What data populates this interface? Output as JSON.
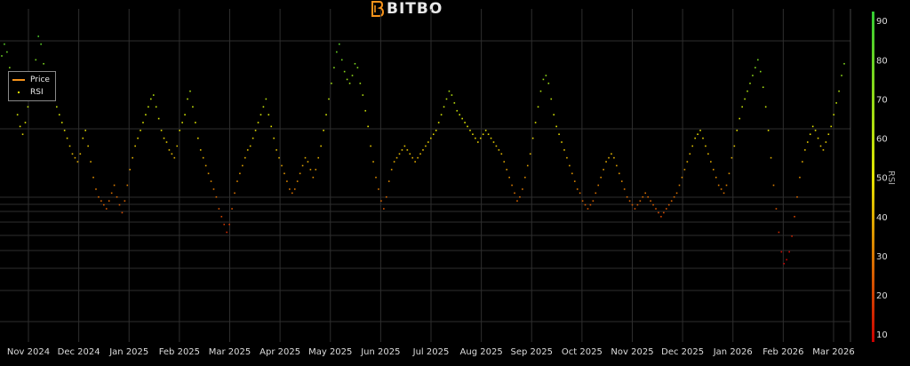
{
  "brand": {
    "name": "BITBO",
    "accent": "#f7931a"
  },
  "legend": {
    "items": [
      {
        "label": "Price",
        "color": "#f7931a"
      },
      {
        "label": "RSI",
        "color": "#e6e600"
      }
    ]
  },
  "chart_data": {
    "type": "scatter",
    "ylabel": "RSI",
    "ylim": [
      8,
      93
    ],
    "y_ticks": [
      10,
      20,
      30,
      40,
      50,
      60,
      70,
      80,
      90
    ],
    "x_tick_labels": [
      "Nov 2024",
      "Dec 2024",
      "Jan 2025",
      "Feb 2025",
      "Mar 2025",
      "Apr 2025",
      "May 2025",
      "Jun 2025",
      "Jul 2025",
      "Aug 2025",
      "Sep 2025",
      "Oct 2025",
      "Nov 2025",
      "Dec 2025",
      "Jan 2026",
      "Feb 2026",
      "Mar 2026"
    ],
    "colorscale": {
      "low": "#cc0000",
      "mid": "#e6e600",
      "high": "#33cc33"
    },
    "series": [
      {
        "name": "RSI",
        "values": [
          81,
          84,
          82,
          78,
          74,
          70,
          66,
          63,
          61,
          64,
          68,
          72,
          76,
          80,
          86,
          84,
          79,
          76,
          74,
          72,
          70,
          68,
          66,
          64,
          62,
          60,
          58,
          56,
          55,
          54,
          56,
          60,
          62,
          58,
          54,
          50,
          47,
          45,
          44,
          43,
          42,
          44,
          46,
          48,
          45,
          43,
          41,
          44,
          48,
          52,
          55,
          58,
          60,
          62,
          64,
          66,
          68,
          70,
          71,
          68,
          65,
          62,
          60,
          59,
          57,
          56,
          55,
          58,
          62,
          64,
          66,
          70,
          72,
          68,
          64,
          60,
          57,
          55,
          53,
          51,
          49,
          47,
          45,
          42,
          40,
          38,
          36,
          38,
          42,
          46,
          49,
          51,
          53,
          55,
          57,
          58,
          60,
          62,
          64,
          66,
          68,
          70,
          66,
          63,
          60,
          57,
          55,
          53,
          51,
          49,
          47,
          46,
          47,
          49,
          51,
          53,
          55,
          54,
          52,
          50,
          52,
          55,
          58,
          62,
          66,
          70,
          74,
          78,
          82,
          84,
          80,
          77,
          75,
          74,
          76,
          79,
          78,
          74,
          71,
          67,
          63,
          58,
          54,
          50,
          47,
          44,
          42,
          45,
          49,
          52,
          54,
          55,
          56,
          57,
          58,
          57,
          56,
          55,
          54,
          55,
          56,
          57,
          58,
          59,
          60,
          61,
          62,
          64,
          66,
          68,
          70,
          72,
          71,
          69,
          67,
          66,
          65,
          64,
          63,
          62,
          61,
          60,
          59,
          60,
          61,
          62,
          61,
          60,
          59,
          58,
          57,
          56,
          54,
          52,
          50,
          48,
          46,
          44,
          45,
          47,
          50,
          53,
          56,
          60,
          64,
          68,
          72,
          75,
          76,
          74,
          70,
          66,
          63,
          61,
          59,
          57,
          55,
          53,
          51,
          49,
          47,
          46,
          44,
          43,
          42,
          43,
          44,
          46,
          48,
          50,
          52,
          54,
          55,
          56,
          55,
          53,
          51,
          49,
          47,
          45,
          44,
          43,
          42,
          43,
          44,
          45,
          46,
          45,
          44,
          43,
          42,
          41,
          40,
          41,
          42,
          43,
          44,
          45,
          46,
          48,
          50,
          52,
          54,
          56,
          58,
          60,
          61,
          62,
          60,
          58,
          56,
          54,
          52,
          50,
          48,
          47,
          46,
          48,
          51,
          55,
          58,
          62,
          65,
          68,
          70,
          72,
          74,
          76,
          78,
          80,
          77,
          73,
          68,
          62,
          55,
          48,
          42,
          36,
          31,
          28,
          29,
          31,
          35,
          40,
          45,
          50,
          54,
          57,
          59,
          61,
          63,
          62,
          60,
          58,
          57,
          59,
          61,
          63,
          66,
          69,
          72,
          76,
          79
        ]
      }
    ]
  }
}
